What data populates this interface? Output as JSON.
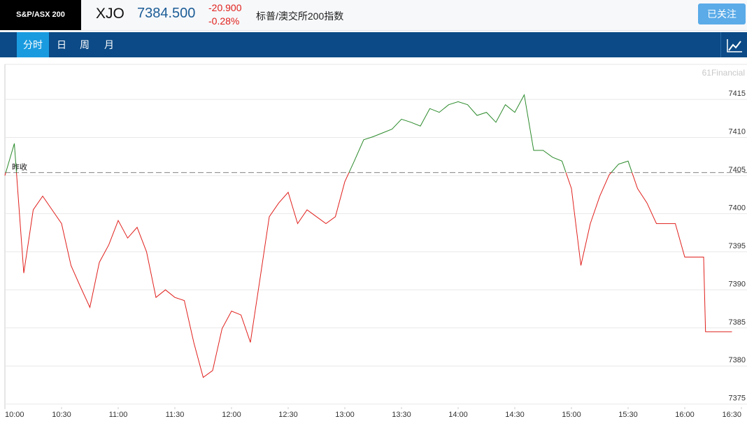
{
  "header": {
    "index_badge": "S&P/ASX 200",
    "symbol": "XJO",
    "price": "7384.500",
    "change": "-20.900",
    "change_pct": "-0.28%",
    "name": "标普/澳交所200指数",
    "follow_button": "已关注"
  },
  "tabs": [
    "分时",
    "日",
    "周",
    "月"
  ],
  "chart_data": {
    "type": "line",
    "watermark": "61Financial",
    "x": [
      "10:00",
      "10:05",
      "10:10",
      "10:15",
      "10:20",
      "10:25",
      "10:30",
      "10:35",
      "10:40",
      "10:45",
      "10:50",
      "10:55",
      "11:00",
      "11:05",
      "11:10",
      "11:15",
      "11:20",
      "11:25",
      "11:30",
      "11:35",
      "11:40",
      "11:45",
      "11:50",
      "11:55",
      "12:00",
      "12:05",
      "12:10",
      "12:15",
      "12:20",
      "12:25",
      "12:30",
      "12:35",
      "12:40",
      "12:45",
      "12:50",
      "12:55",
      "13:00",
      "13:05",
      "13:10",
      "13:15",
      "13:20",
      "13:25",
      "13:30",
      "13:35",
      "13:40",
      "13:45",
      "13:50",
      "13:55",
      "14:00",
      "14:05",
      "14:10",
      "14:15",
      "14:20",
      "14:25",
      "14:30",
      "14:35",
      "14:40",
      "14:45",
      "14:50",
      "14:55",
      "15:00",
      "15:05",
      "15:10",
      "15:15",
      "15:20",
      "15:25",
      "15:30",
      "15:35",
      "15:40",
      "15:45",
      "15:50",
      "15:55",
      "16:00",
      "16:05",
      "16:10",
      "16:11",
      "16:15",
      "16:20",
      "16:25"
    ],
    "values": [
      7405,
      7409.2,
      7392.2,
      7400.5,
      7402.3,
      7400.5,
      7398.7,
      7393.2,
      7390.4,
      7387.7,
      7393.6,
      7395.9,
      7399.1,
      7396.8,
      7398.2,
      7395,
      7389,
      7390,
      7389,
      7388.6,
      7383.1,
      7378.5,
      7379.4,
      7384.9,
      7387.2,
      7386.7,
      7383.1,
      7391.3,
      7399.6,
      7401.4,
      7402.8,
      7398.7,
      7400.5,
      7399.6,
      7398.7,
      7399.6,
      7404.2,
      7406.9,
      7409.7,
      7410.1,
      7410.6,
      7411.1,
      7412.4,
      7412,
      7411.5,
      7413.8,
      7413.3,
      7414.3,
      7414.7,
      7414.3,
      7412.9,
      7413.3,
      7412,
      7414.3,
      7413.3,
      7415.6,
      7408.3,
      7408.3,
      7407.4,
      7406.9,
      7403.3,
      7393.2,
      7398.7,
      7402.3,
      7405.1,
      7406.5,
      7406.9,
      7403.3,
      7401.4,
      7398.7,
      7398.7,
      7398.7,
      7394.3,
      7394.3,
      7394.3,
      7384.5,
      7384.5,
      7384.5,
      7384.5
    ],
    "reference": {
      "value": 7405.4,
      "label": "昨收"
    },
    "color_above": "#2b8a2b",
    "color_below": "#e0201c",
    "xlim": [
      "10:00",
      "16:30"
    ],
    "ylim": [
      7374.6,
      7419.6
    ],
    "xticks": [
      "10:00",
      "10:30",
      "11:00",
      "11:30",
      "12:00",
      "12:30",
      "13:00",
      "13:30",
      "14:00",
      "14:30",
      "15:00",
      "15:30",
      "16:00",
      "16:30"
    ],
    "yticks": [
      7375,
      7380,
      7385,
      7390,
      7395,
      7400,
      7405,
      7410,
      7415
    ],
    "grid": true
  }
}
